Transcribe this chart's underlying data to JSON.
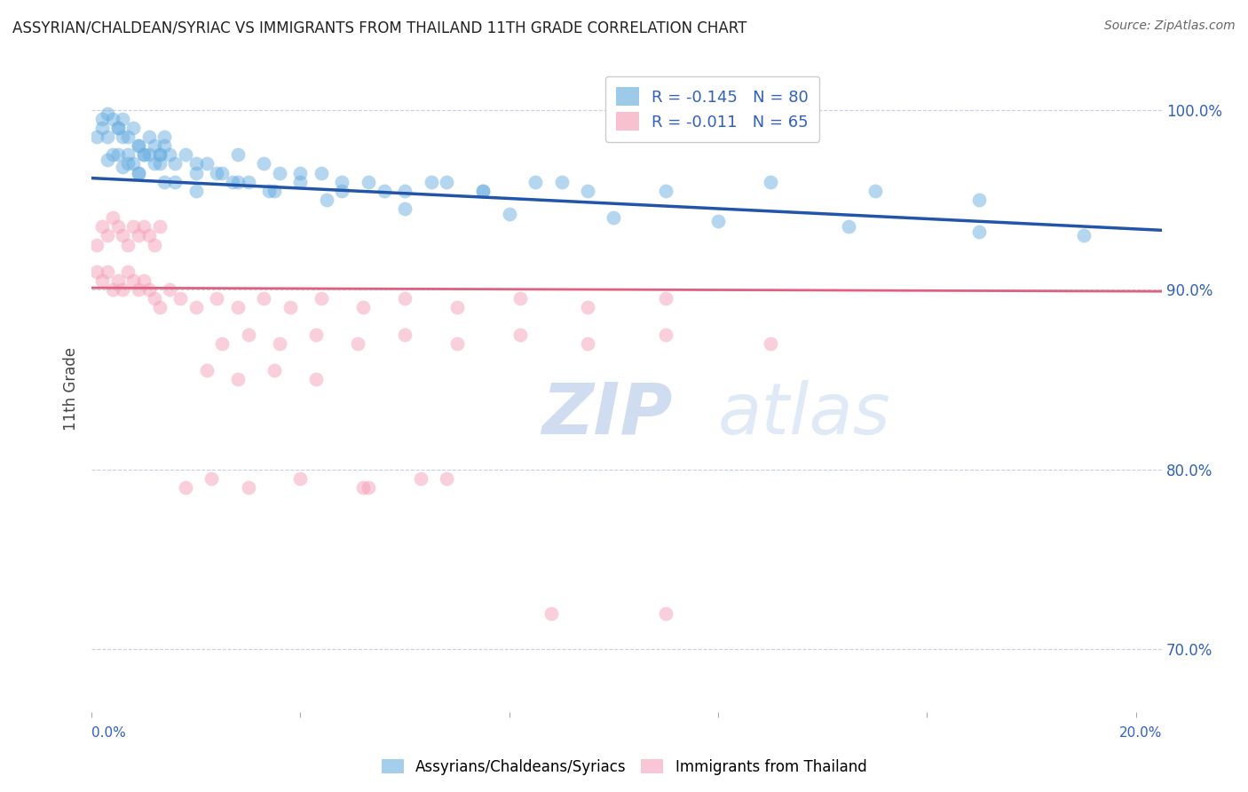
{
  "title": "ASSYRIAN/CHALDEAN/SYRIAC VS IMMIGRANTS FROM THAILAND 11TH GRADE CORRELATION CHART",
  "source_text": "Source: ZipAtlas.com",
  "ylabel": "11th Grade",
  "y_ticks": [
    0.7,
    0.8,
    0.9,
    1.0
  ],
  "y_tick_labels": [
    "70.0%",
    "80.0%",
    "90.0%",
    "100.0%"
  ],
  "xlim": [
    0.0,
    0.205
  ],
  "ylim": [
    0.665,
    1.025
  ],
  "legend_r1": "R = -0.145   N = 80",
  "legend_r2": "R = -0.011   N = 65",
  "blue_color": "#6aaee0",
  "pink_color": "#f4a0b8",
  "line_blue_color": "#2255aa",
  "line_pink_color": "#e06080",
  "text_color": "#3060c0",
  "watermark_text": "ZIPatlas",
  "blue_line_x0": 0.0,
  "blue_line_y0": 0.962,
  "blue_line_x1": 0.205,
  "blue_line_y1": 0.933,
  "pink_line_x0": 0.0,
  "pink_line_y0": 0.901,
  "pink_line_x1": 0.205,
  "pink_line_y1": 0.899,
  "blue_scatter_x": [
    0.001,
    0.002,
    0.003,
    0.004,
    0.005,
    0.006,
    0.007,
    0.008,
    0.009,
    0.01,
    0.011,
    0.012,
    0.013,
    0.014,
    0.015,
    0.002,
    0.003,
    0.004,
    0.005,
    0.006,
    0.007,
    0.008,
    0.009,
    0.01,
    0.012,
    0.013,
    0.014,
    0.016,
    0.018,
    0.02,
    0.022,
    0.025,
    0.028,
    0.03,
    0.033,
    0.036,
    0.04,
    0.044,
    0.048,
    0.053,
    0.06,
    0.068,
    0.075,
    0.085,
    0.095,
    0.005,
    0.007,
    0.009,
    0.011,
    0.013,
    0.016,
    0.02,
    0.024,
    0.028,
    0.034,
    0.04,
    0.048,
    0.056,
    0.065,
    0.075,
    0.09,
    0.11,
    0.13,
    0.15,
    0.17,
    0.003,
    0.006,
    0.009,
    0.014,
    0.02,
    0.027,
    0.035,
    0.045,
    0.06,
    0.08,
    0.1,
    0.12,
    0.145,
    0.17,
    0.19
  ],
  "blue_scatter_y": [
    0.985,
    0.99,
    0.985,
    0.975,
    0.99,
    0.985,
    0.975,
    0.97,
    0.98,
    0.975,
    0.985,
    0.98,
    0.975,
    0.985,
    0.975,
    0.995,
    0.998,
    0.995,
    0.99,
    0.995,
    0.985,
    0.99,
    0.98,
    0.975,
    0.97,
    0.975,
    0.98,
    0.97,
    0.975,
    0.965,
    0.97,
    0.965,
    0.975,
    0.96,
    0.97,
    0.965,
    0.96,
    0.965,
    0.955,
    0.96,
    0.955,
    0.96,
    0.955,
    0.96,
    0.955,
    0.975,
    0.97,
    0.965,
    0.975,
    0.97,
    0.96,
    0.97,
    0.965,
    0.96,
    0.955,
    0.965,
    0.96,
    0.955,
    0.96,
    0.955,
    0.96,
    0.955,
    0.96,
    0.955,
    0.95,
    0.972,
    0.968,
    0.965,
    0.96,
    0.955,
    0.96,
    0.955,
    0.95,
    0.945,
    0.942,
    0.94,
    0.938,
    0.935,
    0.932,
    0.93
  ],
  "pink_scatter_x": [
    0.001,
    0.002,
    0.003,
    0.004,
    0.005,
    0.006,
    0.007,
    0.008,
    0.009,
    0.01,
    0.011,
    0.012,
    0.013,
    0.001,
    0.002,
    0.003,
    0.004,
    0.005,
    0.006,
    0.007,
    0.008,
    0.009,
    0.01,
    0.011,
    0.012,
    0.013,
    0.015,
    0.017,
    0.02,
    0.024,
    0.028,
    0.033,
    0.038,
    0.044,
    0.052,
    0.06,
    0.07,
    0.082,
    0.095,
    0.11,
    0.025,
    0.03,
    0.036,
    0.043,
    0.051,
    0.06,
    0.07,
    0.082,
    0.095,
    0.11,
    0.13,
    0.022,
    0.028,
    0.035,
    0.043,
    0.052,
    0.063,
    0.018,
    0.023,
    0.03,
    0.04,
    0.053,
    0.068,
    0.088,
    0.11
  ],
  "pink_scatter_y": [
    0.925,
    0.935,
    0.93,
    0.94,
    0.935,
    0.93,
    0.925,
    0.935,
    0.93,
    0.935,
    0.93,
    0.925,
    0.935,
    0.91,
    0.905,
    0.91,
    0.9,
    0.905,
    0.9,
    0.91,
    0.905,
    0.9,
    0.905,
    0.9,
    0.895,
    0.89,
    0.9,
    0.895,
    0.89,
    0.895,
    0.89,
    0.895,
    0.89,
    0.895,
    0.89,
    0.895,
    0.89,
    0.895,
    0.89,
    0.895,
    0.87,
    0.875,
    0.87,
    0.875,
    0.87,
    0.875,
    0.87,
    0.875,
    0.87,
    0.875,
    0.87,
    0.855,
    0.85,
    0.855,
    0.85,
    0.79,
    0.795,
    0.79,
    0.795,
    0.79,
    0.795,
    0.79,
    0.795,
    0.72,
    0.72
  ]
}
